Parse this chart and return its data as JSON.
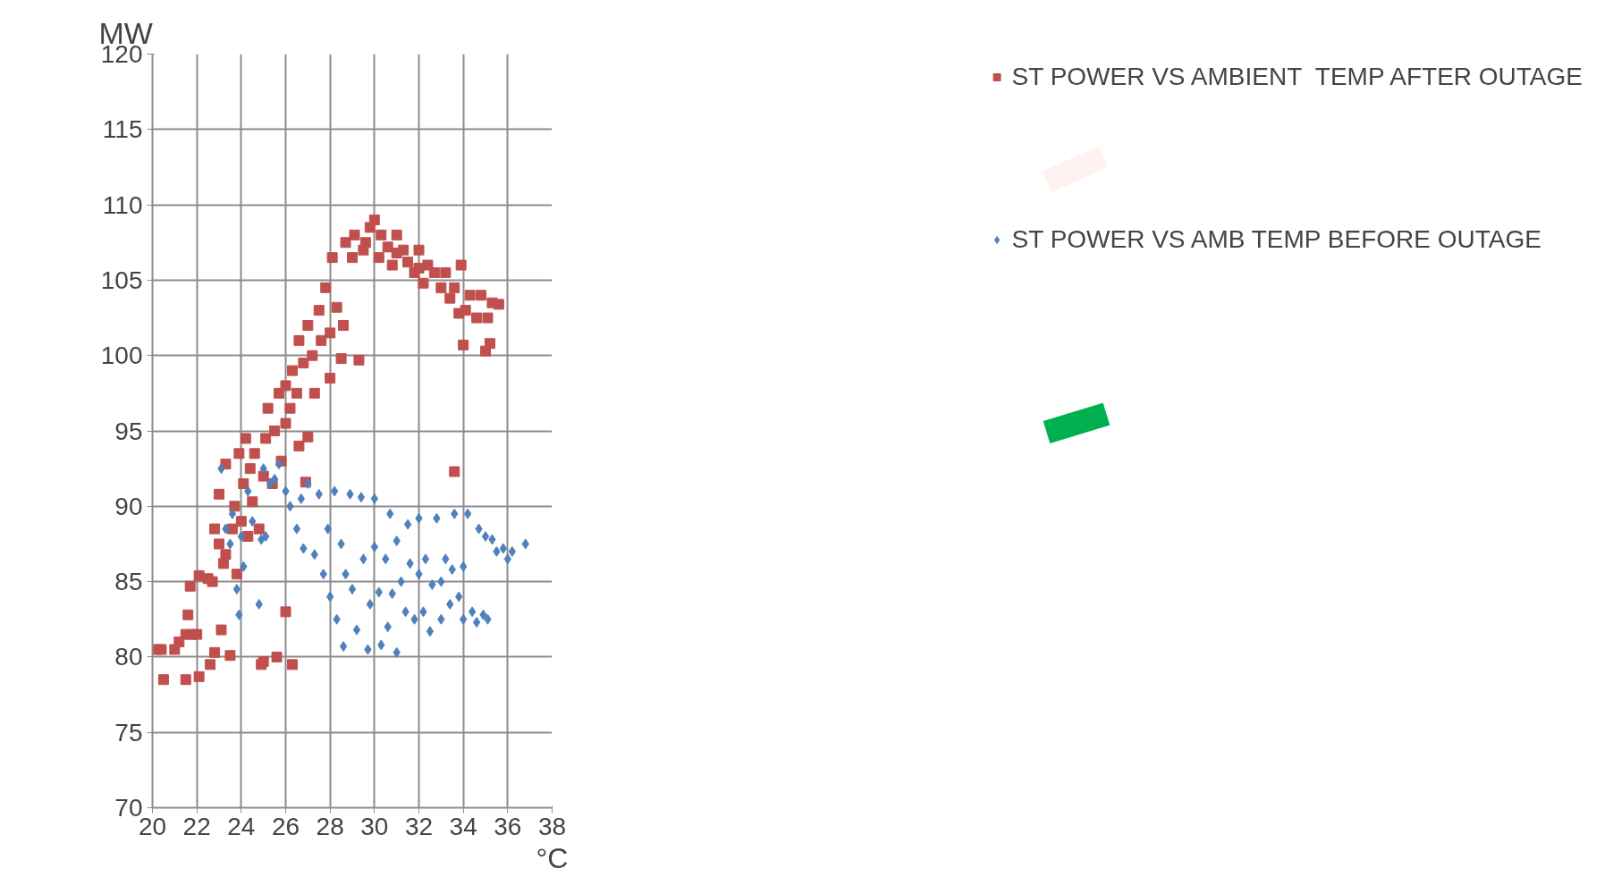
{
  "chart_data": {
    "type": "scatter",
    "xlabel": "°C",
    "ylabel": "MW",
    "xlim": [
      20,
      38
    ],
    "ylim": [
      70,
      120
    ],
    "xticks": [
      20,
      22,
      24,
      26,
      28,
      30,
      32,
      34,
      36,
      38
    ],
    "yticks": [
      70,
      75,
      80,
      85,
      90,
      95,
      100,
      105,
      110,
      115,
      120
    ],
    "grid": true,
    "legend": "right",
    "series": [
      {
        "name": "ST POWER VS AMBIENT  TEMP AFTER OUTAGE",
        "color": "#c0504d",
        "marker": "square",
        "x": [
          20.2,
          20.4,
          20.5,
          21,
          21.2,
          21.5,
          21.5,
          21.6,
          21.7,
          21.8,
          22,
          22.1,
          22.1,
          22.5,
          22.6,
          22.7,
          22.8,
          22.8,
          23,
          23,
          23.1,
          23.2,
          23.3,
          23.3,
          23.5,
          23.6,
          23.7,
          23.8,
          23.9,
          24,
          24.1,
          24.2,
          24.3,
          24.4,
          24.5,
          24.6,
          24.8,
          24.9,
          25,
          25,
          25.1,
          25.2,
          25.4,
          25.5,
          25.6,
          25.7,
          25.8,
          26,
          26,
          26,
          26.2,
          26.3,
          26.3,
          26.5,
          26.6,
          26.6,
          26.8,
          26.9,
          27,
          27,
          27.2,
          27.3,
          27.5,
          27.6,
          27.8,
          28,
          28,
          28.1,
          28.3,
          28.5,
          28.6,
          28.7,
          29,
          29.1,
          29.3,
          29.5,
          29.8,
          30,
          30.2,
          30.3,
          30.6,
          30.8,
          31,
          31.3,
          31.5,
          31.8,
          32,
          32.2,
          32.4,
          32.7,
          33,
          33.2,
          33.4,
          33.6,
          33.8,
          33.9,
          34,
          34.1,
          34.3,
          34.6,
          34.8,
          35,
          35.1,
          35.2,
          35.3,
          35.6,
          33.6,
          32,
          31,
          29.6
        ],
        "values": [
          80.5,
          80.5,
          78.5,
          80.5,
          81,
          78.5,
          81.5,
          82.8,
          84.7,
          81.5,
          81.5,
          78.7,
          85.4,
          85.2,
          79.5,
          85,
          80.3,
          88.5,
          87.5,
          90.8,
          81.8,
          86.2,
          86.8,
          92.8,
          80.1,
          88.5,
          90,
          85.5,
          93.5,
          89,
          91.5,
          94.5,
          88,
          92.5,
          90.3,
          93.5,
          88.5,
          79.5,
          79.7,
          92,
          94.5,
          96.5,
          91.5,
          95,
          80,
          97.5,
          93,
          95.5,
          83,
          98,
          96.5,
          79.5,
          99,
          97.5,
          101,
          94,
          99.5,
          91.6,
          102,
          94.6,
          100,
          97.5,
          103,
          101,
          104.5,
          101.5,
          98.5,
          106.5,
          103.2,
          99.8,
          102,
          107.5,
          106.5,
          108,
          99.7,
          107,
          108.5,
          109,
          106.5,
          108,
          107.2,
          106,
          108,
          107,
          106.2,
          105.5,
          107,
          104.8,
          106,
          105.5,
          104.5,
          105.5,
          103.8,
          104.5,
          102.8,
          106,
          100.7,
          103,
          104,
          102.5,
          104,
          100.3,
          102.5,
          100.8,
          103.5,
          103.4,
          92.3,
          105.8,
          106.8,
          107.5
        ]
      },
      {
        "name": "ST POWER VS AMB TEMP BEFORE OUTAGE",
        "color": "#4f81bd",
        "marker": "diamond",
        "x": [
          23.1,
          23.3,
          23.5,
          23.6,
          23.8,
          23.9,
          24,
          24.1,
          24.3,
          24.5,
          24.8,
          24.9,
          25,
          25.1,
          25.3,
          25.5,
          25.7,
          26,
          26.2,
          26.5,
          26.7,
          26.8,
          27,
          27.3,
          27.5,
          27.7,
          27.9,
          28,
          28.2,
          28.3,
          28.5,
          28.6,
          28.7,
          28.9,
          29,
          29.2,
          29.4,
          29.5,
          29.7,
          29.8,
          30,
          30,
          30.2,
          30.3,
          30.5,
          30.6,
          30.7,
          30.8,
          31,
          31,
          31.2,
          31.4,
          31.5,
          31.6,
          31.8,
          32,
          32,
          32.2,
          32.3,
          32.5,
          32.6,
          32.8,
          33,
          33,
          33.2,
          33.4,
          33.5,
          33.6,
          33.8,
          34,
          34,
          34.2,
          34.4,
          34.6,
          34.7,
          34.9,
          35,
          35.3,
          35.5,
          35.8,
          36,
          36.2,
          36.8,
          35.1
        ],
        "values": [
          92.5,
          88.5,
          87.5,
          89.5,
          84.5,
          82.8,
          88,
          86,
          91,
          89,
          83.5,
          87.8,
          92.5,
          88,
          91.5,
          91.8,
          92.8,
          91,
          90,
          88.5,
          90.5,
          87.2,
          91.5,
          86.8,
          90.8,
          85.5,
          88.5,
          84,
          91,
          82.5,
          87.5,
          80.7,
          85.5,
          90.8,
          84.5,
          81.8,
          90.6,
          86.5,
          80.5,
          83.5,
          90.5,
          87.3,
          84.3,
          80.8,
          86.5,
          82,
          89.5,
          84.2,
          80.3,
          87.7,
          85,
          83,
          88.8,
          86.2,
          82.5,
          85.5,
          89.2,
          83,
          86.5,
          81.7,
          84.8,
          89.2,
          82.5,
          85,
          86.5,
          83.5,
          85.8,
          89.5,
          84,
          82.5,
          86,
          89.5,
          83,
          82.3,
          88.5,
          82.8,
          88,
          87.8,
          87,
          87.2,
          86.5,
          87,
          87.5,
          82.5
        ]
      }
    ]
  }
}
